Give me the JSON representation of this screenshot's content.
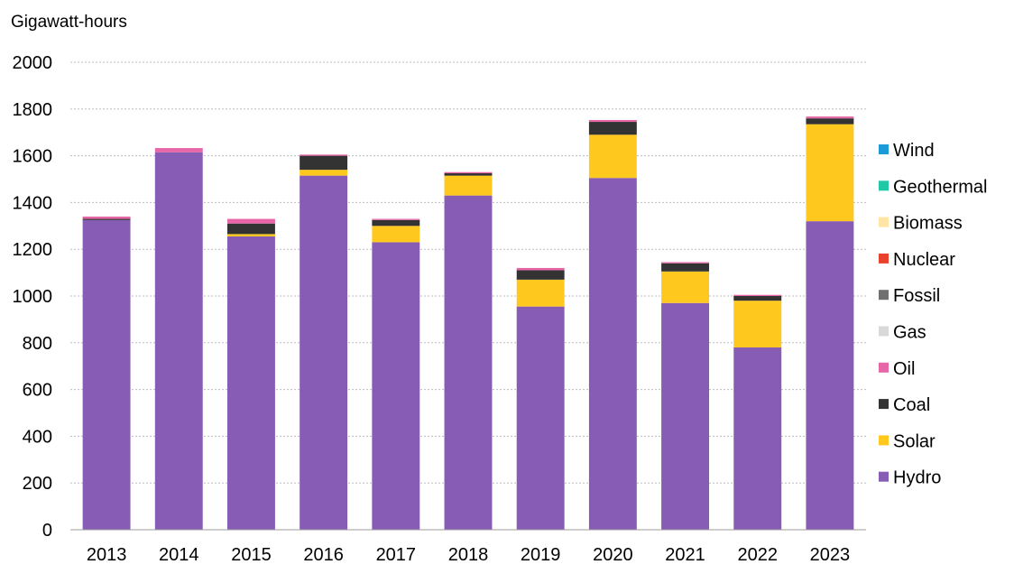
{
  "chart_data": {
    "type": "bar",
    "stacked": true,
    "ylabel": "Gigawatt-hours",
    "ylim": [
      0,
      2000
    ],
    "yticks": [
      0,
      200,
      400,
      600,
      800,
      1000,
      1200,
      1400,
      1600,
      1800,
      2000
    ],
    "grid": true,
    "legend_position": "right",
    "categories": [
      "2013",
      "2014",
      "2015",
      "2016",
      "2017",
      "2018",
      "2019",
      "2020",
      "2021",
      "2022",
      "2023"
    ],
    "series": [
      {
        "name": "Hydro",
        "color": "#875cb5",
        "values": [
          1325,
          1615,
          1255,
          1515,
          1230,
          1430,
          955,
          1505,
          970,
          780,
          1320
        ]
      },
      {
        "name": "Solar",
        "color": "#ffc81e",
        "values": [
          0,
          0,
          10,
          25,
          70,
          85,
          115,
          185,
          135,
          200,
          415
        ]
      },
      {
        "name": "Coal",
        "color": "#333333",
        "values": [
          5,
          0,
          45,
          60,
          25,
          10,
          40,
          55,
          35,
          20,
          25
        ]
      },
      {
        "name": "Oil",
        "color": "#e666a8",
        "values": [
          10,
          18,
          20,
          5,
          5,
          5,
          10,
          8,
          5,
          5,
          8
        ]
      },
      {
        "name": "Gas",
        "color": "#d9d9d9",
        "values": [
          0,
          0,
          0,
          0,
          0,
          0,
          0,
          0,
          0,
          0,
          0
        ]
      },
      {
        "name": "Fossil",
        "color": "#707070",
        "values": [
          0,
          0,
          0,
          0,
          0,
          0,
          0,
          0,
          0,
          0,
          0
        ]
      },
      {
        "name": "Nuclear",
        "color": "#e8412c",
        "values": [
          0,
          0,
          0,
          0,
          0,
          0,
          0,
          0,
          0,
          0,
          0
        ]
      },
      {
        "name": "Biomass",
        "color": "#ffe4a3",
        "values": [
          0,
          0,
          0,
          0,
          0,
          0,
          0,
          0,
          0,
          0,
          0
        ]
      },
      {
        "name": "Geothermal",
        "color": "#1fc9a6",
        "values": [
          0,
          0,
          0,
          0,
          0,
          0,
          0,
          0,
          0,
          0,
          0
        ]
      },
      {
        "name": "Wind",
        "color": "#1c9bd8",
        "values": [
          0,
          0,
          0,
          0,
          0,
          0,
          0,
          0,
          0,
          0,
          0
        ]
      }
    ]
  }
}
